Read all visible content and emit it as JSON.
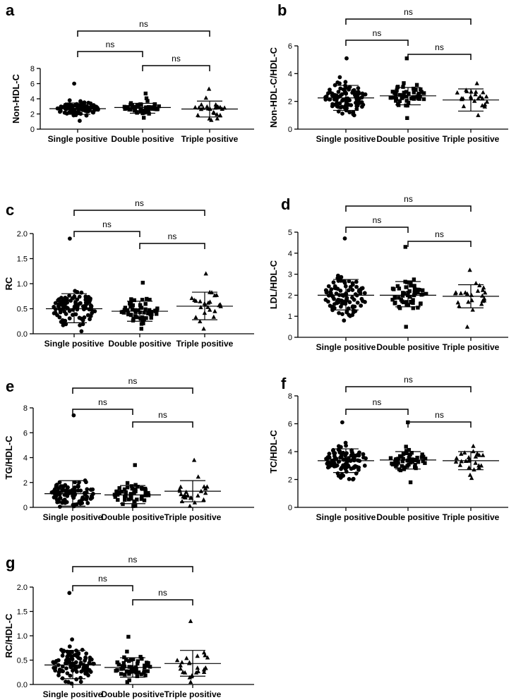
{
  "figure": {
    "groups": [
      "Single positive",
      "Double positive",
      "Triple positive"
    ],
    "group_markers": [
      "circle",
      "square",
      "triangle"
    ],
    "comparison_label": "ns"
  },
  "chart_data": [
    {
      "panel": "a",
      "type": "scatter",
      "ylabel": "Non-HDL-C",
      "ylim": [
        0,
        8
      ],
      "yticks": [
        "0",
        "2",
        "4",
        "6",
        "8"
      ],
      "categories": [
        "Single positive",
        "Double positive",
        "Triple positive"
      ],
      "n": [
        100,
        55,
        25
      ],
      "summary": [
        {
          "mean": 2.7,
          "sd_low": 1.95,
          "sd_high": 3.45
        },
        {
          "mean": 2.85,
          "sd_low": 2.1,
          "sd_high": 3.4
        },
        {
          "mean": 2.65,
          "sd_low": 1.6,
          "sd_high": 3.7
        }
      ],
      "range": [
        [
          1.1,
          6.0
        ],
        [
          1.5,
          4.7
        ],
        [
          1.2,
          5.3
        ]
      ],
      "comparisons": [
        {
          "pair": [
            "Single positive",
            "Double positive"
          ],
          "label": "ns"
        },
        {
          "pair": [
            "Double positive",
            "Triple positive"
          ],
          "label": "ns"
        },
        {
          "pair": [
            "Single positive",
            "Triple positive"
          ],
          "label": "ns"
        }
      ]
    },
    {
      "panel": "b",
      "type": "scatter",
      "ylabel": "Non-HDL-C/HDL-C",
      "ylim": [
        0,
        6
      ],
      "yticks": [
        "0",
        "2",
        "4",
        "6"
      ],
      "categories": [
        "Single positive",
        "Double positive",
        "Triple positive"
      ],
      "n": [
        100,
        55,
        25
      ],
      "summary": [
        {
          "mean": 2.25,
          "sd_low": 1.35,
          "sd_high": 3.15
        },
        {
          "mean": 2.4,
          "sd_low": 1.75,
          "sd_high": 3.0
        },
        {
          "mean": 2.1,
          "sd_low": 1.3,
          "sd_high": 2.9
        }
      ],
      "range": [
        [
          1.0,
          5.1
        ],
        [
          0.8,
          5.1
        ],
        [
          1.0,
          3.3
        ]
      ],
      "comparisons": [
        {
          "pair": [
            "Single positive",
            "Double positive"
          ],
          "label": "ns"
        },
        {
          "pair": [
            "Double positive",
            "Triple positive"
          ],
          "label": "ns"
        },
        {
          "pair": [
            "Single positive",
            "Triple positive"
          ],
          "label": "ns"
        }
      ]
    },
    {
      "panel": "c",
      "type": "scatter",
      "ylabel": "RC",
      "ylim": [
        0,
        2
      ],
      "yticks": [
        "0.0",
        "0.5",
        "1.0",
        "1.5",
        "2.0"
      ],
      "categories": [
        "Single positive",
        "Double positive",
        "Triple positive"
      ],
      "n": [
        100,
        55,
        25
      ],
      "summary": [
        {
          "mean": 0.5,
          "sd_low": 0.22,
          "sd_high": 0.8
        },
        {
          "mean": 0.45,
          "sd_low": 0.25,
          "sd_high": 0.65
        },
        {
          "mean": 0.55,
          "sd_low": 0.28,
          "sd_high": 0.83
        }
      ],
      "range": [
        [
          0.05,
          1.9
        ],
        [
          0.1,
          1.02
        ],
        [
          0.1,
          1.2
        ]
      ],
      "comparisons": [
        {
          "pair": [
            "Single positive",
            "Double positive"
          ],
          "label": "ns"
        },
        {
          "pair": [
            "Double positive",
            "Triple positive"
          ],
          "label": "ns"
        },
        {
          "pair": [
            "Single positive",
            "Triple positive"
          ],
          "label": "ns"
        }
      ]
    },
    {
      "panel": "d",
      "type": "scatter",
      "ylabel": "LDL/HDL-C",
      "ylim": [
        0,
        5
      ],
      "yticks": [
        "0",
        "1",
        "2",
        "3",
        "4",
        "5"
      ],
      "categories": [
        "Single positive",
        "Double positive",
        "Triple positive"
      ],
      "n": [
        100,
        55,
        25
      ],
      "summary": [
        {
          "mean": 2.0,
          "sd_low": 1.3,
          "sd_high": 2.75
        },
        {
          "mean": 2.0,
          "sd_low": 1.45,
          "sd_high": 2.65
        },
        {
          "mean": 1.95,
          "sd_low": 1.4,
          "sd_high": 2.5
        }
      ],
      "range": [
        [
          0.8,
          4.7
        ],
        [
          0.5,
          4.3
        ],
        [
          0.5,
          3.2
        ]
      ],
      "comparisons": [
        {
          "pair": [
            "Single positive",
            "Double positive"
          ],
          "label": "ns"
        },
        {
          "pair": [
            "Double positive",
            "Triple positive"
          ],
          "label": "ns"
        },
        {
          "pair": [
            "Single positive",
            "Triple positive"
          ],
          "label": "ns"
        }
      ]
    },
    {
      "panel": "e",
      "type": "scatter",
      "ylabel": "TG/HDL-C",
      "ylim": [
        0,
        8
      ],
      "yticks": [
        "0",
        "2",
        "4",
        "6",
        "8"
      ],
      "categories": [
        "Single positive",
        "Double positive",
        "Triple positive"
      ],
      "n": [
        100,
        55,
        25
      ],
      "summary": [
        {
          "mean": 1.1,
          "sd_low": 0.1,
          "sd_high": 2.15
        },
        {
          "mean": 1.0,
          "sd_low": 0.3,
          "sd_high": 1.75
        },
        {
          "mean": 1.3,
          "sd_low": 0.45,
          "sd_high": 2.15
        }
      ],
      "range": [
        [
          0.05,
          7.4
        ],
        [
          0.1,
          3.4
        ],
        [
          0.1,
          3.8
        ]
      ],
      "comparisons": [
        {
          "pair": [
            "Single positive",
            "Double positive"
          ],
          "label": "ns"
        },
        {
          "pair": [
            "Double positive",
            "Triple positive"
          ],
          "label": "ns"
        },
        {
          "pair": [
            "Single positive",
            "Triple positive"
          ],
          "label": "ns"
        }
      ]
    },
    {
      "panel": "f",
      "type": "scatter",
      "ylabel": "TC/HDL-C",
      "ylim": [
        0,
        8
      ],
      "yticks": [
        "0",
        "2",
        "4",
        "6",
        "8"
      ],
      "categories": [
        "Single positive",
        "Double positive",
        "Triple positive"
      ],
      "n": [
        100,
        55,
        25
      ],
      "summary": [
        {
          "mean": 3.35,
          "sd_low": 2.5,
          "sd_high": 4.2
        },
        {
          "mean": 3.4,
          "sd_low": 2.75,
          "sd_high": 4.0
        },
        {
          "mean": 3.35,
          "sd_low": 2.7,
          "sd_high": 4.0
        }
      ],
      "range": [
        [
          2.0,
          6.1
        ],
        [
          1.8,
          6.1
        ],
        [
          2.1,
          4.4
        ]
      ],
      "comparisons": [
        {
          "pair": [
            "Single positive",
            "Double positive"
          ],
          "label": "ns"
        },
        {
          "pair": [
            "Double positive",
            "Triple positive"
          ],
          "label": "ns"
        },
        {
          "pair": [
            "Single positive",
            "Triple positive"
          ],
          "label": "ns"
        }
      ]
    },
    {
      "panel": "g",
      "type": "scatter",
      "ylabel": "RC/HDL-C",
      "ylim": [
        0,
        2
      ],
      "yticks": [
        "0.0",
        "0.5",
        "1.0",
        "1.5",
        "2.0"
      ],
      "categories": [
        "Single positive",
        "Double positive",
        "Triple positive"
      ],
      "n": [
        100,
        55,
        25
      ],
      "summary": [
        {
          "mean": 0.4,
          "sd_low": 0.12,
          "sd_high": 0.7
        },
        {
          "mean": 0.35,
          "sd_low": 0.15,
          "sd_high": 0.55
        },
        {
          "mean": 0.43,
          "sd_low": 0.17,
          "sd_high": 0.7
        }
      ],
      "range": [
        [
          0.02,
          1.88
        ],
        [
          0.05,
          0.98
        ],
        [
          0.05,
          1.3
        ]
      ],
      "comparisons": [
        {
          "pair": [
            "Single positive",
            "Double positive"
          ],
          "label": "ns"
        },
        {
          "pair": [
            "Double positive",
            "Triple positive"
          ],
          "label": "ns"
        },
        {
          "pair": [
            "Single positive",
            "Triple positive"
          ],
          "label": "ns"
        }
      ]
    }
  ]
}
